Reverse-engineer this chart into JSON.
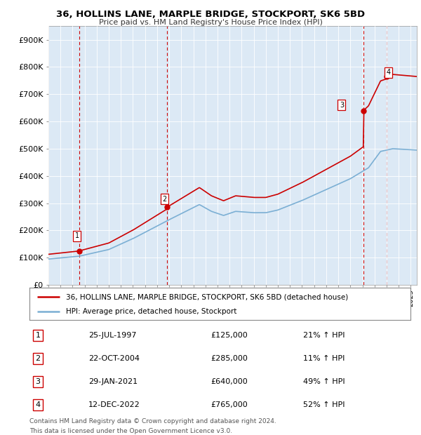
{
  "title_line1": "36, HOLLINS LANE, MARPLE BRIDGE, STOCKPORT, SK6 5BD",
  "title_line2": "Price paid vs. HM Land Registry's House Price Index (HPI)",
  "sale_prices": [
    125000,
    285000,
    640000,
    765000
  ],
  "sale_labels": [
    "1",
    "2",
    "3",
    "4"
  ],
  "sale_info": [
    [
      "25-JUL-1997",
      "£125,000",
      "21% ↑ HPI"
    ],
    [
      "22-OCT-2004",
      "£285,000",
      "11% ↑ HPI"
    ],
    [
      "29-JAN-2021",
      "£640,000",
      "49% ↑ HPI"
    ],
    [
      "12-DEC-2022",
      "£765,000",
      "52% ↑ HPI"
    ]
  ],
  "sale_year_decimals": [
    1997.56,
    2004.81,
    2021.08,
    2023.0
  ],
  "hpi_color": "#7bafd4",
  "price_color": "#cc0000",
  "chart_bg_color": "#dce9f5",
  "background_color": "#ffffff",
  "grid_color": "#ffffff",
  "ylabel_ticks": [
    0,
    100000,
    200000,
    300000,
    400000,
    500000,
    600000,
    700000,
    800000,
    900000
  ],
  "ylabel_labels": [
    "£0",
    "£100K",
    "£200K",
    "£300K",
    "£400K",
    "£500K",
    "£600K",
    "£700K",
    "£800K",
    "£900K"
  ],
  "ylim": [
    0,
    950000
  ],
  "xlim_start": 1995.0,
  "xlim_end": 2025.5,
  "legend_line1": "36, HOLLINS LANE, MARPLE BRIDGE, STOCKPORT, SK6 5BD (detached house)",
  "legend_line2": "HPI: Average price, detached house, Stockport",
  "footer_line1": "Contains HM Land Registry data © Crown copyright and database right 2024.",
  "footer_line2": "This data is licensed under the Open Government Licence v3.0."
}
